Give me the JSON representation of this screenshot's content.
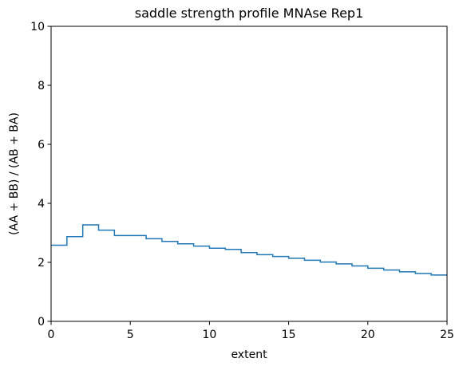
{
  "chart_data": {
    "type": "line",
    "drawstyle": "steps-post",
    "title": "saddle strength profile MNAse Rep1",
    "xlabel": "extent",
    "ylabel": "(AA + BB) / (AB + BA)",
    "xlim": [
      0,
      25
    ],
    "ylim": [
      0,
      10
    ],
    "xticks": [
      0,
      5,
      10,
      15,
      20,
      25
    ],
    "yticks": [
      0,
      2,
      4,
      6,
      8,
      10
    ],
    "grid": false,
    "color": "#1f77b4",
    "series": [
      {
        "x": [
          0,
          1,
          2,
          3,
          4,
          5,
          6,
          7,
          8,
          9,
          10,
          11,
          12,
          13,
          14,
          15,
          16,
          17,
          18,
          19,
          20,
          21,
          22,
          23,
          24,
          25
        ],
        "y": [
          2.58,
          2.87,
          3.27,
          3.09,
          2.91,
          2.91,
          2.8,
          2.71,
          2.63,
          2.55,
          2.48,
          2.44,
          2.33,
          2.26,
          2.2,
          2.14,
          2.07,
          2.01,
          1.95,
          1.88,
          1.8,
          1.74,
          1.68,
          1.62,
          1.57,
          1.57
        ]
      }
    ]
  }
}
